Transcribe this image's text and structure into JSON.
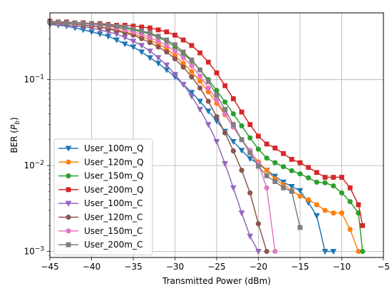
{
  "chart_data": {
    "type": "line",
    "title": "",
    "xlabel": "Transmitted Power (dBm)",
    "ylabel": "BER (P_b)",
    "ylabel_parts": {
      "prefix": "BER (",
      "symbol": "P",
      "subscript": "b",
      "suffix": ")"
    },
    "xlim": [
      -45,
      -5
    ],
    "ylim": [
      0.00085,
      0.6
    ],
    "yscale": "log",
    "grid": true,
    "legend_position": "lower-left",
    "x_ticks": [
      -45,
      -40,
      -35,
      -30,
      -25,
      -20,
      -15,
      -10,
      -5
    ],
    "x_tick_labels": [
      "−45",
      "−40",
      "−35",
      "−30",
      "−25",
      "−20",
      "−15",
      "−10",
      "−5"
    ],
    "y_ticks": [
      0.001,
      0.01,
      0.1
    ],
    "y_tick_labels": [
      {
        "base": "10",
        "exp": "−3"
      },
      {
        "base": "10",
        "exp": "−2"
      },
      {
        "base": "10",
        "exp": "−1"
      }
    ],
    "series": [
      {
        "name": "User_100m_Q",
        "color": "#1f77b4",
        "marker": "triangle-down",
        "x": [
          -45,
          -44,
          -43,
          -42,
          -41,
          -40,
          -39,
          -38,
          -37,
          -36,
          -35,
          -34,
          -33,
          -32,
          -31,
          -30,
          -29,
          -28,
          -27,
          -26,
          -25,
          -24,
          -23,
          -22,
          -21,
          -20,
          -19,
          -18,
          -17,
          -16,
          -15,
          -14,
          -13,
          -12,
          -11
        ],
        "y": [
          0.44,
          0.43,
          0.42,
          0.4,
          0.38,
          0.36,
          0.34,
          0.32,
          0.29,
          0.26,
          0.24,
          0.21,
          0.18,
          0.155,
          0.13,
          0.108,
          0.088,
          0.071,
          0.056,
          0.043,
          0.033,
          0.025,
          0.019,
          0.015,
          0.012,
          0.0105,
          0.0088,
          0.0075,
          0.0064,
          0.0057,
          0.0051,
          0.0037,
          0.0026,
          0.001,
          0.001
        ]
      },
      {
        "name": "User_120m_Q",
        "color": "#ff7f0e",
        "marker": "circle",
        "x": [
          -45,
          -44,
          -43,
          -42,
          -41,
          -40,
          -39,
          -38,
          -37,
          -36,
          -35,
          -34,
          -33,
          -32,
          -31,
          -30,
          -29,
          -28,
          -27,
          -26,
          -25,
          -24,
          -23,
          -22,
          -21,
          -20,
          -19,
          -18,
          -17,
          -16,
          -15,
          -14,
          -13,
          -12,
          -11,
          -10,
          -9,
          -8
        ],
        "y": [
          0.46,
          0.45,
          0.45,
          0.44,
          0.43,
          0.42,
          0.41,
          0.4,
          0.38,
          0.36,
          0.34,
          0.32,
          0.29,
          0.26,
          0.23,
          0.19,
          0.155,
          0.124,
          0.096,
          0.072,
          0.053,
          0.039,
          0.028,
          0.02,
          0.0145,
          0.011,
          0.0088,
          0.007,
          0.006,
          0.0051,
          0.0044,
          0.004,
          0.0035,
          0.003,
          0.0028,
          0.0028,
          0.0018,
          0.001
        ]
      },
      {
        "name": "User_150m_Q",
        "color": "#2ca02c",
        "marker": "circle",
        "x": [
          -45,
          -44,
          -43,
          -42,
          -41,
          -40,
          -39,
          -38,
          -37,
          -36,
          -35,
          -34,
          -33,
          -32,
          -31,
          -30,
          -29,
          -28,
          -27,
          -26,
          -25,
          -24,
          -23,
          -22,
          -21,
          -20,
          -19,
          -18,
          -17,
          -16,
          -15,
          -14,
          -13,
          -12,
          -11,
          -10,
          -9,
          -8,
          -7.5
        ],
        "y": [
          0.47,
          0.46,
          0.46,
          0.45,
          0.45,
          0.44,
          0.43,
          0.42,
          0.41,
          0.4,
          0.38,
          0.36,
          0.34,
          0.31,
          0.28,
          0.24,
          0.2,
          0.165,
          0.13,
          0.1,
          0.075,
          0.055,
          0.04,
          0.029,
          0.021,
          0.0155,
          0.0122,
          0.0108,
          0.0097,
          0.0087,
          0.008,
          0.0072,
          0.0064,
          0.0063,
          0.0058,
          0.0048,
          0.0038,
          0.0028,
          0.001
        ]
      },
      {
        "name": "User_200m_Q",
        "color": "#d62728",
        "marker": "square",
        "x": [
          -45,
          -44,
          -43,
          -42,
          -41,
          -40,
          -39,
          -38,
          -37,
          -36,
          -35,
          -34,
          -33,
          -32,
          -31,
          -30,
          -29,
          -28,
          -27,
          -26,
          -25,
          -24,
          -23,
          -22,
          -21,
          -20,
          -19,
          -18,
          -17,
          -16,
          -15,
          -14,
          -13,
          -12,
          -11,
          -10,
          -9,
          -8,
          -7.5
        ],
        "y": [
          0.48,
          0.47,
          0.47,
          0.46,
          0.46,
          0.45,
          0.45,
          0.44,
          0.43,
          0.43,
          0.42,
          0.41,
          0.4,
          0.38,
          0.36,
          0.33,
          0.29,
          0.25,
          0.205,
          0.16,
          0.12,
          0.085,
          0.06,
          0.042,
          0.03,
          0.022,
          0.0178,
          0.016,
          0.0138,
          0.0118,
          0.0108,
          0.0095,
          0.0083,
          0.0073,
          0.0073,
          0.0073,
          0.0055,
          0.0035,
          0.002
        ]
      },
      {
        "name": "User_100m_C",
        "color": "#9467bd",
        "marker": "triangle-down",
        "x": [
          -45,
          -44,
          -43,
          -42,
          -41,
          -40,
          -39,
          -38,
          -37,
          -36,
          -35,
          -34,
          -33,
          -32,
          -31,
          -30,
          -29,
          -28,
          -27,
          -26,
          -25,
          -24,
          -23,
          -22,
          -21,
          -20
        ],
        "y": [
          0.45,
          0.44,
          0.43,
          0.42,
          0.41,
          0.4,
          0.38,
          0.36,
          0.34,
          0.31,
          0.28,
          0.25,
          0.215,
          0.18,
          0.148,
          0.115,
          0.088,
          0.064,
          0.045,
          0.03,
          0.019,
          0.0105,
          0.0055,
          0.0028,
          0.0015,
          0.001
        ]
      },
      {
        "name": "User_120m_C",
        "color": "#8c564b",
        "marker": "circle",
        "x": [
          -45,
          -44,
          -43,
          -42,
          -41,
          -40,
          -39,
          -38,
          -37,
          -36,
          -35,
          -34,
          -33,
          -32,
          -31,
          -30,
          -29,
          -28,
          -27,
          -26,
          -25,
          -24,
          -23,
          -22,
          -21,
          -20,
          -19
        ],
        "y": [
          0.46,
          0.45,
          0.45,
          0.44,
          0.43,
          0.42,
          0.41,
          0.39,
          0.37,
          0.35,
          0.33,
          0.3,
          0.27,
          0.24,
          0.21,
          0.175,
          0.14,
          0.108,
          0.08,
          0.056,
          0.037,
          0.024,
          0.0148,
          0.0088,
          0.0048,
          0.0021,
          0.001
        ]
      },
      {
        "name": "User_150m_C",
        "color": "#e377c2",
        "marker": "circle",
        "x": [
          -45,
          -44,
          -43,
          -42,
          -41,
          -40,
          -39,
          -38,
          -37,
          -36,
          -35,
          -34,
          -33,
          -32,
          -31,
          -30,
          -29,
          -28,
          -27,
          -26,
          -25,
          -24,
          -23,
          -22,
          -21,
          -20,
          -19,
          -18
        ],
        "y": [
          0.47,
          0.46,
          0.46,
          0.45,
          0.45,
          0.44,
          0.43,
          0.42,
          0.4,
          0.38,
          0.36,
          0.34,
          0.31,
          0.28,
          0.25,
          0.215,
          0.18,
          0.145,
          0.11,
          0.08,
          0.058,
          0.04,
          0.028,
          0.02,
          0.015,
          0.0105,
          0.0055,
          0.001
        ]
      },
      {
        "name": "User_200m_C",
        "color": "#7f7f7f",
        "marker": "square",
        "x": [
          -45,
          -44,
          -43,
          -42,
          -41,
          -40,
          -39,
          -38,
          -37,
          -36,
          -35,
          -34,
          -33,
          -32,
          -31,
          -30,
          -29,
          -28,
          -27,
          -26,
          -25,
          -24,
          -23,
          -22,
          -21,
          -20,
          -19,
          -18,
          -17,
          -16,
          -15
        ],
        "y": [
          0.47,
          0.47,
          0.46,
          0.46,
          0.45,
          0.45,
          0.44,
          0.43,
          0.42,
          0.41,
          0.39,
          0.37,
          0.35,
          0.32,
          0.29,
          0.255,
          0.21,
          0.17,
          0.13,
          0.095,
          0.066,
          0.045,
          0.03,
          0.02,
          0.014,
          0.0098,
          0.0076,
          0.0065,
          0.0055,
          0.005,
          0.0019
        ]
      }
    ]
  }
}
